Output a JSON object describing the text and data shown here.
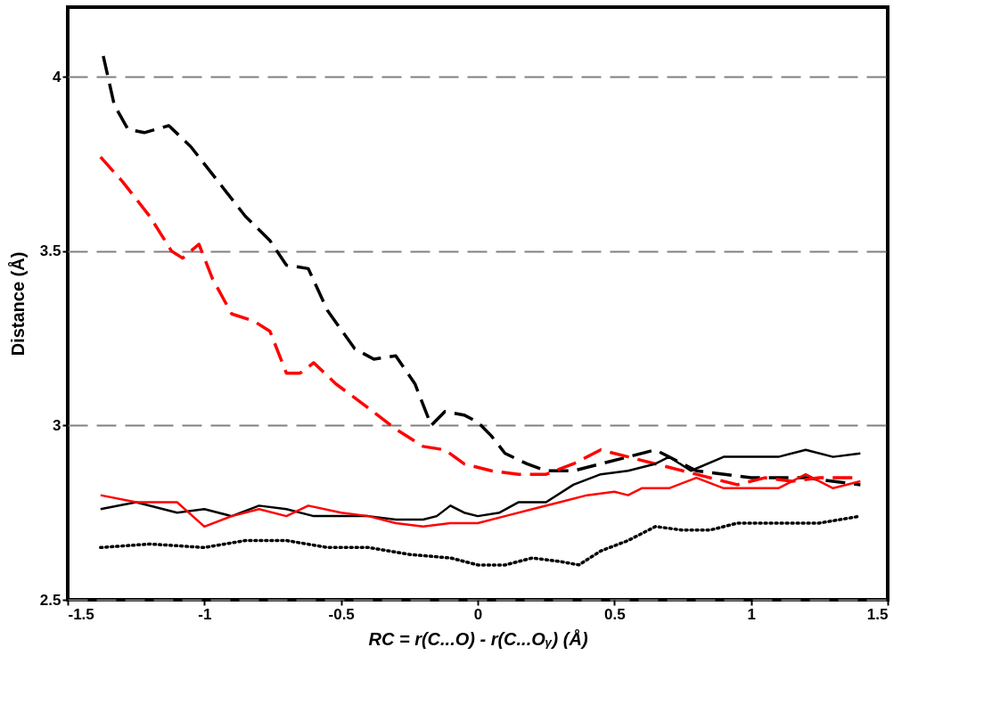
{
  "chart_data": {
    "type": "line",
    "xlabel": "RC = r(C...O) - r(C...Oᵧ) (Å)",
    "ylabel": "Distance (Å)",
    "xlim": [
      -1.5,
      1.5
    ],
    "xticks": [
      -1.5,
      -1,
      -0.5,
      0,
      0.5,
      1,
      1.5
    ],
    "ylim": [
      2.5,
      4.2
    ],
    "yticks": [
      2.5,
      3,
      3.5,
      4
    ],
    "grid": "y",
    "series": [
      {
        "color": "#000000",
        "line_style": "dashed",
        "x": [
          -1.37,
          -1.33,
          -1.28,
          -1.22,
          -1.13,
          -1.05,
          -0.95,
          -0.85,
          -0.76,
          -0.7,
          -0.62,
          -0.55,
          -0.45,
          -0.38,
          -0.3,
          -0.23,
          -0.17,
          -0.12,
          -0.05,
          0,
          0.05,
          0.1,
          0.18,
          0.25,
          0.35,
          0.45,
          0.55,
          0.65,
          0.8,
          1.0,
          1.2,
          1.4
        ],
        "values": [
          4.06,
          3.92,
          3.85,
          3.84,
          3.86,
          3.8,
          3.7,
          3.6,
          3.53,
          3.46,
          3.45,
          3.33,
          3.22,
          3.19,
          3.2,
          3.12,
          3.0,
          3.04,
          3.03,
          3.01,
          2.97,
          2.92,
          2.89,
          2.87,
          2.87,
          2.89,
          2.91,
          2.93,
          2.87,
          2.85,
          2.85,
          2.83
        ]
      },
      {
        "color": "#ff0000",
        "line_style": "dashed",
        "x": [
          -1.38,
          -1.3,
          -1.2,
          -1.12,
          -1.08,
          -1.02,
          -0.97,
          -0.9,
          -0.82,
          -0.76,
          -0.7,
          -0.65,
          -0.6,
          -0.52,
          -0.4,
          -0.3,
          -0.2,
          -0.12,
          -0.05,
          0.05,
          0.15,
          0.25,
          0.35,
          0.45,
          0.55,
          0.65,
          0.75,
          0.85,
          0.95,
          1.05,
          1.15,
          1.25,
          1.4
        ],
        "values": [
          3.77,
          3.7,
          3.6,
          3.5,
          3.48,
          3.52,
          3.42,
          3.32,
          3.3,
          3.27,
          3.15,
          3.15,
          3.18,
          3.12,
          3.05,
          2.99,
          2.94,
          2.93,
          2.89,
          2.87,
          2.86,
          2.86,
          2.89,
          2.93,
          2.91,
          2.89,
          2.87,
          2.85,
          2.83,
          2.85,
          2.84,
          2.85,
          2.85
        ]
      },
      {
        "color": "#000000",
        "line_style": "solid",
        "x": [
          -1.38,
          -1.25,
          -1.1,
          -1.0,
          -0.9,
          -0.8,
          -0.7,
          -0.6,
          -0.5,
          -0.4,
          -0.3,
          -0.2,
          -0.15,
          -0.1,
          -0.05,
          0,
          0.08,
          0.15,
          0.25,
          0.35,
          0.45,
          0.55,
          0.65,
          0.7,
          0.78,
          0.9,
          1.0,
          1.1,
          1.2,
          1.3,
          1.4
        ],
        "values": [
          2.76,
          2.78,
          2.75,
          2.76,
          2.74,
          2.77,
          2.76,
          2.74,
          2.74,
          2.74,
          2.73,
          2.73,
          2.74,
          2.77,
          2.75,
          2.74,
          2.75,
          2.78,
          2.78,
          2.83,
          2.86,
          2.87,
          2.89,
          2.91,
          2.87,
          2.91,
          2.91,
          2.91,
          2.93,
          2.91,
          2.92
        ]
      },
      {
        "color": "#ff0000",
        "line_style": "solid",
        "x": [
          -1.38,
          -1.25,
          -1.1,
          -1.0,
          -0.9,
          -0.8,
          -0.7,
          -0.62,
          -0.5,
          -0.4,
          -0.3,
          -0.2,
          -0.1,
          0,
          0.1,
          0.2,
          0.3,
          0.4,
          0.5,
          0.55,
          0.6,
          0.7,
          0.8,
          0.9,
          1.0,
          1.1,
          1.2,
          1.3,
          1.4
        ],
        "values": [
          2.8,
          2.78,
          2.78,
          2.71,
          2.74,
          2.76,
          2.74,
          2.77,
          2.75,
          2.74,
          2.72,
          2.71,
          2.72,
          2.72,
          2.74,
          2.76,
          2.78,
          2.8,
          2.81,
          2.8,
          2.82,
          2.82,
          2.85,
          2.82,
          2.82,
          2.82,
          2.86,
          2.82,
          2.84
        ]
      },
      {
        "color": "#000000",
        "line_style": "dotted",
        "x": [
          -1.38,
          -1.2,
          -1.0,
          -0.85,
          -0.7,
          -0.55,
          -0.4,
          -0.25,
          -0.1,
          0,
          0.1,
          0.2,
          0.3,
          0.37,
          0.45,
          0.55,
          0.65,
          0.75,
          0.85,
          0.95,
          1.05,
          1.15,
          1.25,
          1.4
        ],
        "values": [
          2.65,
          2.66,
          2.65,
          2.67,
          2.67,
          2.65,
          2.65,
          2.63,
          2.62,
          2.6,
          2.6,
          2.62,
          2.61,
          2.6,
          2.64,
          2.67,
          2.71,
          2.7,
          2.7,
          2.72,
          2.72,
          2.72,
          2.72,
          2.74
        ]
      }
    ]
  }
}
